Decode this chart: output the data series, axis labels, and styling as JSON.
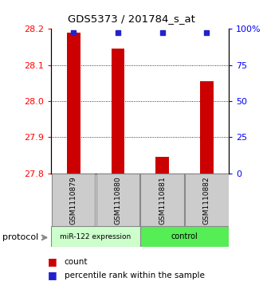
{
  "title": "GDS5373 / 201784_s_at",
  "samples": [
    "GSM1110879",
    "GSM1110880",
    "GSM1110881",
    "GSM1110882"
  ],
  "bar_values": [
    28.19,
    28.145,
    27.845,
    28.055
  ],
  "percentile_values": [
    100,
    100,
    100,
    100
  ],
  "ylim_left": [
    27.8,
    28.2
  ],
  "ylim_right": [
    0,
    100
  ],
  "yticks_left": [
    27.8,
    27.9,
    28.0,
    28.1,
    28.2
  ],
  "yticks_right": [
    0,
    25,
    50,
    75,
    100
  ],
  "bar_color": "#cc0000",
  "dot_color": "#2222cc",
  "group1_label": "miR-122 expression",
  "group2_label": "control",
  "group1_color": "#ccffcc",
  "group2_color": "#55ee55",
  "label_bg_color": "#cccccc",
  "protocol_label": "protocol",
  "legend_count_label": "count",
  "legend_percentile_label": "percentile rank within the sample",
  "background_color": "#ffffff",
  "bar_width": 0.3
}
